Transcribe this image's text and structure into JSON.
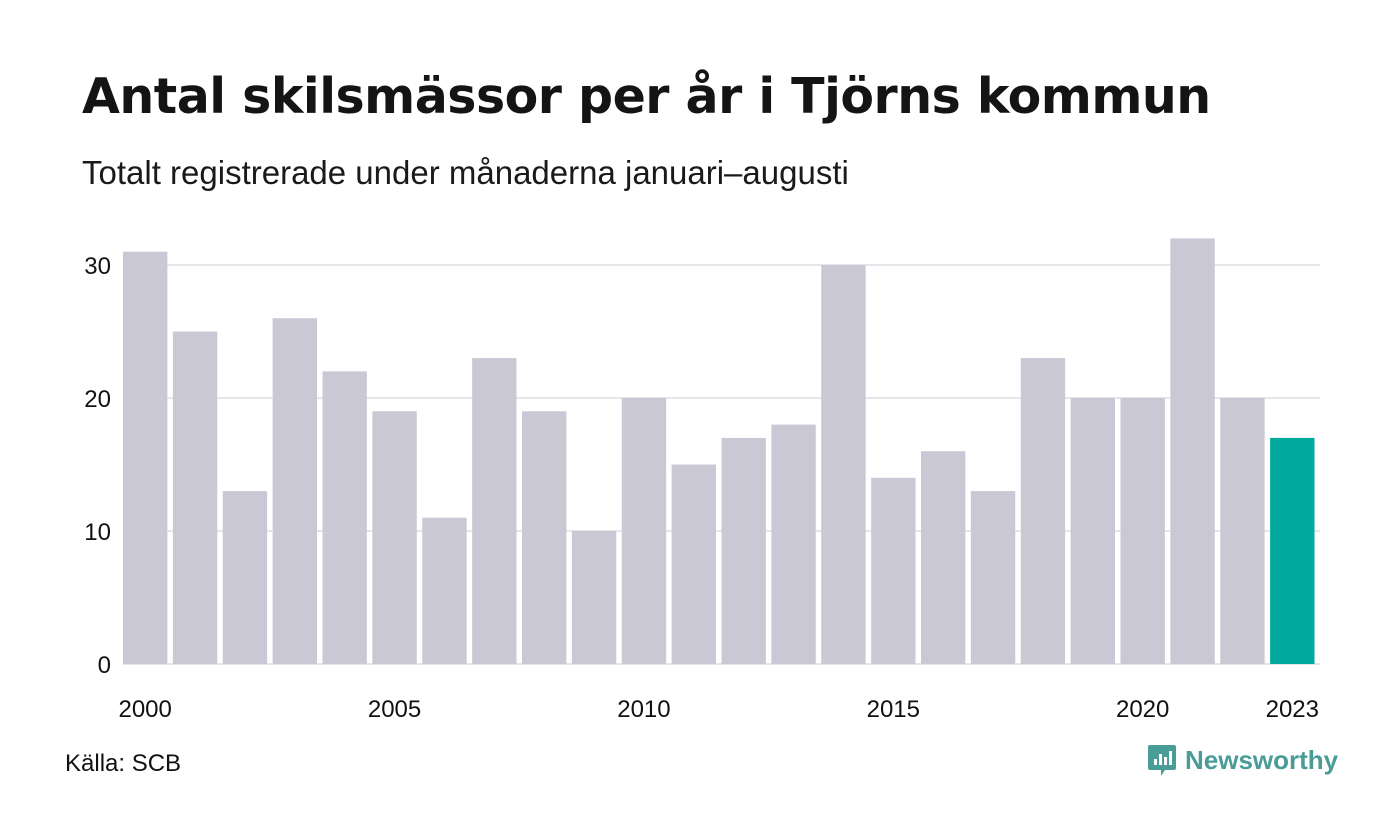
{
  "header": {
    "title": "Antal skilsmässor per år i Tjörns kommun",
    "subtitle": "Totalt registrerade under månaderna januari–augusti"
  },
  "footer": {
    "source": "Källa: SCB",
    "brand": "Newsworthy"
  },
  "colors": {
    "bar": "#c9c8d4",
    "highlight": "#00a99d",
    "grid": "#e6e6ea",
    "brand": "#4a9c98"
  },
  "icons": {
    "brand_logo": "newsworthy-logo-icon"
  },
  "chart_data": {
    "type": "bar",
    "title": "Antal skilsmässor per år i Tjörns kommun",
    "subtitle": "Totalt registrerade under månaderna januari–augusti",
    "xlabel": "",
    "ylabel": "",
    "categories": [
      "2000",
      "2001",
      "2002",
      "2003",
      "2004",
      "2005",
      "2006",
      "2007",
      "2008",
      "2009",
      "2010",
      "2011",
      "2012",
      "2013",
      "2014",
      "2015",
      "2016",
      "2017",
      "2018",
      "2019",
      "2020",
      "2021",
      "2022",
      "2023"
    ],
    "values": [
      31,
      25,
      13,
      26,
      22,
      19,
      11,
      23,
      19,
      10,
      20,
      15,
      17,
      18,
      30,
      14,
      16,
      13,
      23,
      20,
      20,
      32,
      20,
      17
    ],
    "x_tick_labels": [
      "2000",
      "2005",
      "2010",
      "2015",
      "2020",
      "2023"
    ],
    "y_ticks": [
      0,
      10,
      20,
      30
    ],
    "ylim": [
      0,
      32
    ],
    "highlight_category": "2023",
    "grid": true
  }
}
